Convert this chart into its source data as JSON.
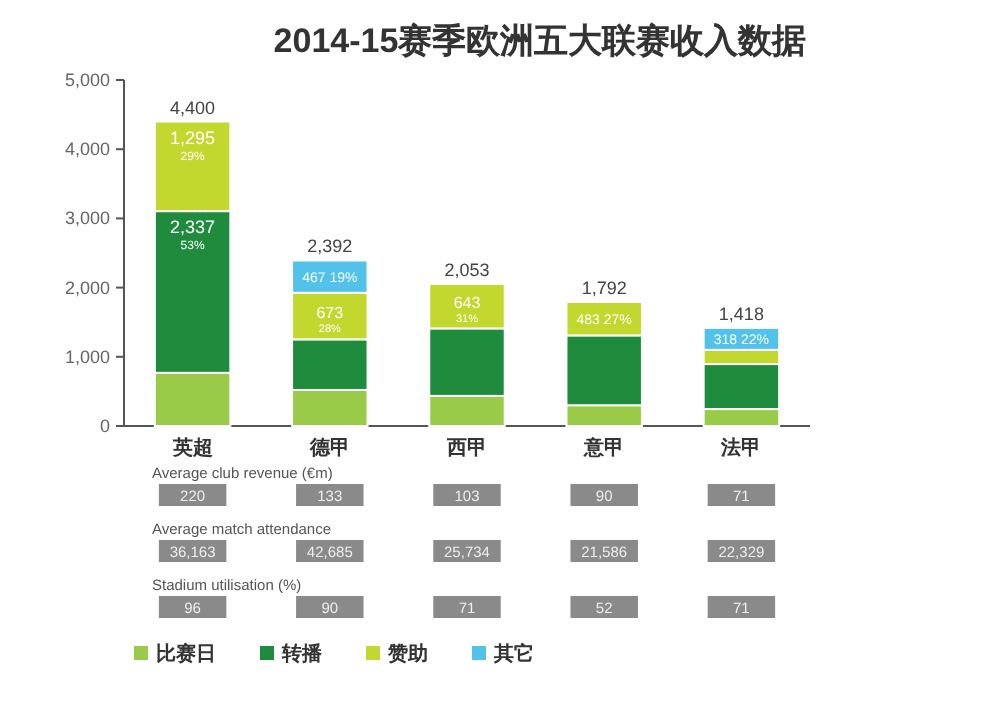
{
  "chart_data": {
    "type": "bar",
    "title": "2014-15赛季欧洲五大联赛收入数据",
    "stacked": true,
    "categories": [
      "英超",
      "德甲",
      "西甲",
      "意甲",
      "法甲"
    ],
    "series": [
      {
        "name": "比赛日",
        "color": "#9acb48",
        "values": [
          768,
          521,
          435,
          300,
          245
        ]
      },
      {
        "name": "转播",
        "color": "#1e8c3c",
        "values": [
          2337,
          731,
          975,
          1009,
          650
        ],
        "value_labels": [
          "2,337\n53%",
          null,
          null,
          null,
          null
        ]
      },
      {
        "name": "赞助",
        "color": "#c3d82e",
        "values": [
          1295,
          673,
          643,
          483,
          205
        ],
        "value_labels": [
          "1,295\n29%",
          "673\n28%",
          "643\n31%",
          "483\n27%",
          null
        ]
      },
      {
        "name": "其它",
        "color": "#52c2ea",
        "values": [
          null,
          467,
          null,
          null,
          318
        ],
        "value_labels": [
          null,
          "467\n19%",
          null,
          null,
          "318\n22%"
        ]
      }
    ],
    "totals": [
      "4,400",
      "2,392",
      "2,053",
      "1,792",
      "1,418"
    ],
    "ylim": [
      0,
      5000
    ],
    "yticks": [
      {
        "value": 0,
        "label": "0"
      },
      {
        "value": 1000,
        "label": "1,000"
      },
      {
        "value": 2000,
        "label": "2,000"
      },
      {
        "value": 3000,
        "label": "3,000"
      },
      {
        "value": 4000,
        "label": "4,000"
      },
      {
        "value": 5000,
        "label": "5,000"
      }
    ],
    "legend": "bottom",
    "annotations": [
      "Average club revenue (€m)",
      "220",
      "133",
      "103",
      "90",
      "71",
      "Average match attendance",
      "36,163",
      "42,685",
      "25,734",
      "21,586",
      "22,329",
      "Stadium utilisation (%)",
      "96",
      "90",
      "71",
      "52",
      "71"
    ]
  }
}
